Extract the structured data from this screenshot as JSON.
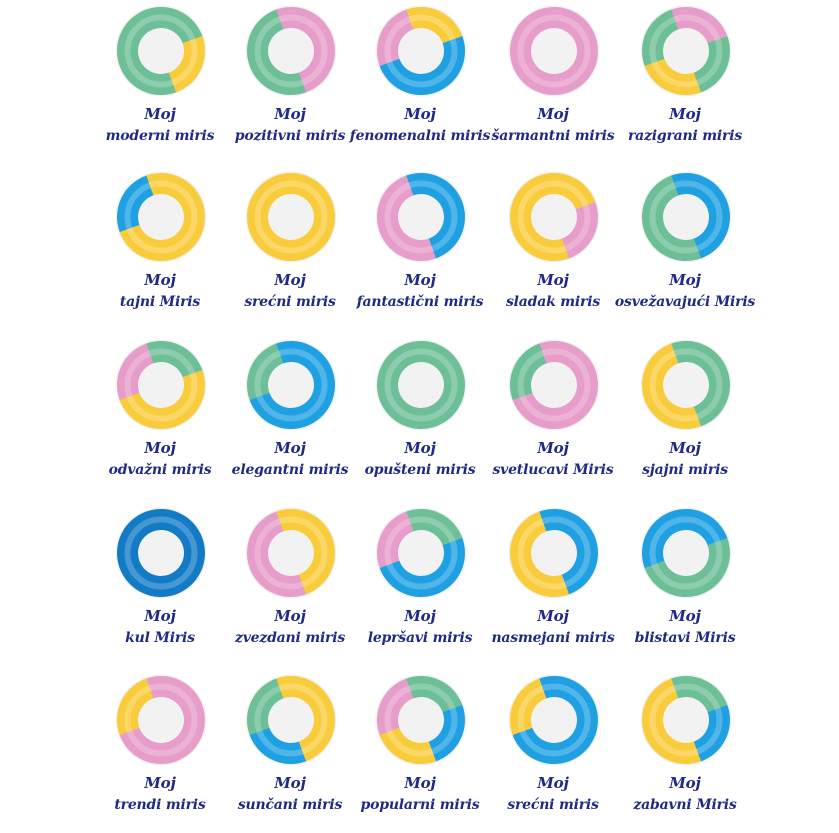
{
  "colors": {
    "green": "#6dbf98",
    "pink": "#e79dca",
    "blue": "#1fa0e3",
    "yellow": "#f9cc3c",
    "darkblue": "#137bc6",
    "label": "#1f2a86"
  },
  "rows": [
    [
      {
        "l1": "Moj",
        "l2": "moderni miris",
        "segments": [
          "green",
          "yellow",
          "green",
          "green"
        ]
      },
      {
        "l1": "Moj",
        "l2": "pozitivni miris",
        "segments": [
          "pink",
          "pink",
          "green",
          "green"
        ]
      },
      {
        "l1": "Moj",
        "l2": "fenomenalni miris",
        "segments": [
          "yellow",
          "blue",
          "blue",
          "pink"
        ]
      },
      {
        "l1": "Moj",
        "l2": "šarmantni miris",
        "segments": [
          "pink",
          "pink",
          "pink",
          "pink"
        ]
      },
      {
        "l1": "Moj",
        "l2": "razigrani miris",
        "segments": [
          "pink",
          "green",
          "yellow",
          "green"
        ]
      }
    ],
    [
      {
        "l1": "Moj",
        "l2": "tajni Miris",
        "segments": [
          "yellow",
          "yellow",
          "yellow",
          "blue"
        ]
      },
      {
        "l1": "Moj",
        "l2": "srećni miris",
        "segments": [
          "yellow",
          "yellow",
          "yellow",
          "yellow"
        ]
      },
      {
        "l1": "Moj",
        "l2": "fantastični miris",
        "segments": [
          "blue",
          "blue",
          "pink",
          "pink"
        ]
      },
      {
        "l1": "Moj",
        "l2": "sladak miris",
        "segments": [
          "yellow",
          "pink",
          "yellow",
          "yellow"
        ]
      },
      {
        "l1": "Moj",
        "l2": "osvežavajući Miris",
        "segments": [
          "blue",
          "blue",
          "green",
          "green"
        ]
      }
    ],
    [
      {
        "l1": "Moj",
        "l2": "odvažni miris",
        "segments": [
          "green",
          "yellow",
          "yellow",
          "pink"
        ]
      },
      {
        "l1": "Moj",
        "l2": "elegantni miris",
        "segments": [
          "blue",
          "blue",
          "blue",
          "green"
        ]
      },
      {
        "l1": "Moj",
        "l2": "opušteni miris",
        "segments": [
          "green",
          "green",
          "green",
          "green"
        ]
      },
      {
        "l1": "Moj",
        "l2": "svetlucavi Miris",
        "segments": [
          "pink",
          "pink",
          "pink",
          "green"
        ]
      },
      {
        "l1": "Moj",
        "l2": "sjajni miris",
        "segments": [
          "green",
          "green",
          "yellow",
          "yellow"
        ]
      }
    ],
    [
      {
        "l1": "Moj",
        "l2": "kul Miris",
        "segments": [
          "darkblue",
          "darkblue",
          "darkblue",
          "darkblue"
        ]
      },
      {
        "l1": "Moj",
        "l2": "zvezdani miris",
        "segments": [
          "yellow",
          "yellow",
          "pink",
          "pink"
        ]
      },
      {
        "l1": "Moj",
        "l2": "lepršavi miris",
        "segments": [
          "green",
          "blue",
          "blue",
          "pink"
        ]
      },
      {
        "l1": "Moj",
        "l2": "nasmejani miris",
        "segments": [
          "blue",
          "blue",
          "yellow",
          "yellow"
        ]
      },
      {
        "l1": "Moj",
        "l2": "blistavi Miris",
        "segments": [
          "blue",
          "green",
          "green",
          "blue"
        ]
      }
    ],
    [
      {
        "l1": "Moj",
        "l2": "trendi miris",
        "segments": [
          "pink",
          "pink",
          "pink",
          "yellow"
        ]
      },
      {
        "l1": "Moj",
        "l2": "sunčani miris",
        "segments": [
          "yellow",
          "yellow",
          "blue",
          "green"
        ]
      },
      {
        "l1": "Moj",
        "l2": "popularni miris",
        "segments": [
          "green",
          "blue",
          "yellow",
          "pink"
        ]
      },
      {
        "l1": "Moj",
        "l2": "srećni miris",
        "segments": [
          "blue",
          "blue",
          "blue",
          "yellow"
        ]
      },
      {
        "l1": "Moj",
        "l2": "zabavni Miris",
        "segments": [
          "green",
          "blue",
          "yellow",
          "yellow"
        ]
      }
    ]
  ]
}
